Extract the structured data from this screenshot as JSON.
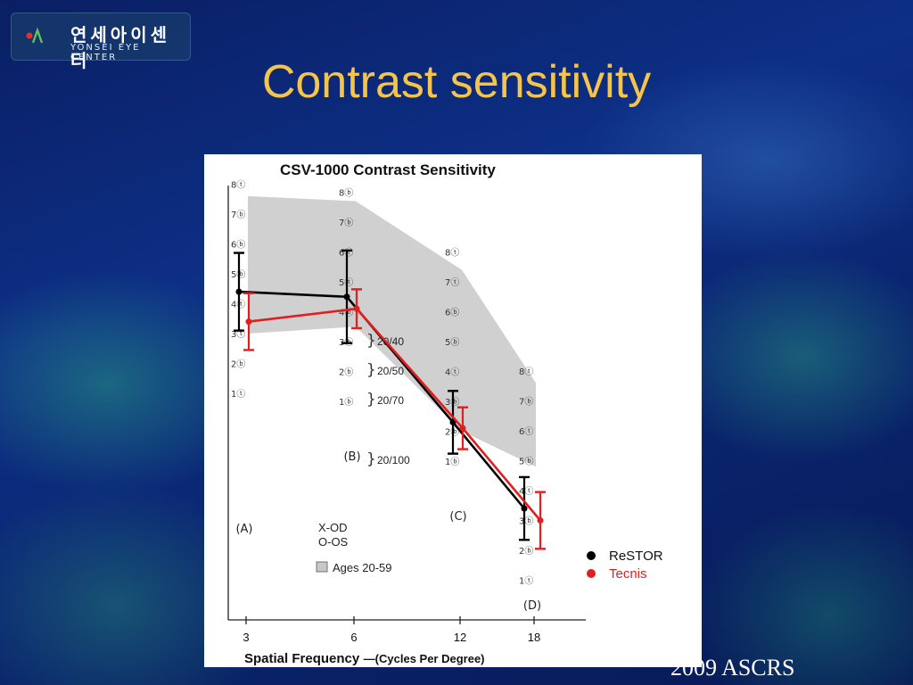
{
  "logo": {
    "korean": "연세아이센터",
    "english": "YONSEI EYE CENTER"
  },
  "slide_title": "Contrast sensitivity",
  "footer": "2009 ASCRS",
  "chart_data": {
    "type": "line",
    "title": "CSV-1000 Contrast Sensitivity",
    "xlabel_main": "Spatial Frequency",
    "xlabel_units": "—(Cycles Per Degree)",
    "ylabel": "",
    "x": [
      3,
      6,
      12,
      18
    ],
    "x_tick_labels": [
      "3",
      "6",
      "12",
      "18"
    ],
    "grid": false,
    "legend_position": "bottom-right",
    "series": [
      {
        "name": "ReSTOR",
        "color": "#000000",
        "values": [
          4.4,
          4.5,
          2.3,
          2.4
        ],
        "error": [
          1.3,
          1.55,
          1.05,
          1.05
        ]
      },
      {
        "name": "Tecnis",
        "color": "#e02020",
        "values": [
          3.4,
          4.1,
          2.1,
          2.0
        ],
        "error": [
          0.95,
          0.65,
          0.7,
          0.95
        ]
      }
    ],
    "normal_band": {
      "label": "Ages 20-59",
      "color": "#c8c8c8",
      "lower": [
        3.0,
        3.5,
        2.0,
        3.8
      ],
      "upper": [
        7.6,
        7.7,
        7.4,
        6.6
      ]
    },
    "columns": [
      {
        "x": 3,
        "letter": "A",
        "start_level": 1,
        "levels": [
          {
            "n": "1",
            "c": "ⓣ"
          },
          {
            "n": "2",
            "c": "ⓑ"
          },
          {
            "n": "3",
            "c": "ⓣ"
          },
          {
            "n": "4",
            "c": "ⓣ"
          },
          {
            "n": "5",
            "c": "ⓑ"
          },
          {
            "n": "6",
            "c": "ⓑ"
          },
          {
            "n": "7",
            "c": "ⓑ"
          },
          {
            "n": "8",
            "c": "ⓣ"
          }
        ]
      },
      {
        "x": 6,
        "letter": "B",
        "start_level": 1,
        "levels": [
          {
            "n": "1",
            "c": "ⓑ"
          },
          {
            "n": "2",
            "c": "ⓑ"
          },
          {
            "n": "3",
            "c": "ⓑ"
          },
          {
            "n": "4",
            "c": "ⓑ"
          },
          {
            "n": "5",
            "c": "ⓣ"
          },
          {
            "n": "6",
            "c": "ⓣ"
          },
          {
            "n": "7",
            "c": "ⓑ"
          },
          {
            "n": "8",
            "c": "ⓑ"
          }
        ]
      },
      {
        "x": 12,
        "letter": "C",
        "start_level": 1,
        "levels": [
          {
            "n": "1",
            "c": "ⓑ"
          },
          {
            "n": "2",
            "c": "ⓑ"
          },
          {
            "n": "3",
            "c": "ⓑ"
          },
          {
            "n": "4",
            "c": "ⓣ"
          },
          {
            "n": "5",
            "c": "ⓑ"
          },
          {
            "n": "6",
            "c": "ⓑ"
          },
          {
            "n": "7",
            "c": "ⓣ"
          },
          {
            "n": "8",
            "c": "ⓣ"
          }
        ]
      },
      {
        "x": 18,
        "letter": "D",
        "start_level": 0,
        "levels": [
          {
            "n": "1",
            "c": "ⓣ"
          },
          {
            "n": "2",
            "c": "ⓑ"
          },
          {
            "n": "3",
            "c": "ⓑ"
          },
          {
            "n": "4",
            "c": "ⓣ"
          },
          {
            "n": "5",
            "c": "ⓑ"
          },
          {
            "n": "6",
            "c": "ⓣ"
          },
          {
            "n": "7",
            "c": "ⓑ"
          },
          {
            "n": "8",
            "c": "ⓣ"
          }
        ]
      }
    ],
    "acuity_labels": [
      "20/40",
      "20/50",
      "20/70",
      "20/100"
    ],
    "key": {
      "x_od": "X-OD",
      "o_os": "O-OS"
    }
  }
}
